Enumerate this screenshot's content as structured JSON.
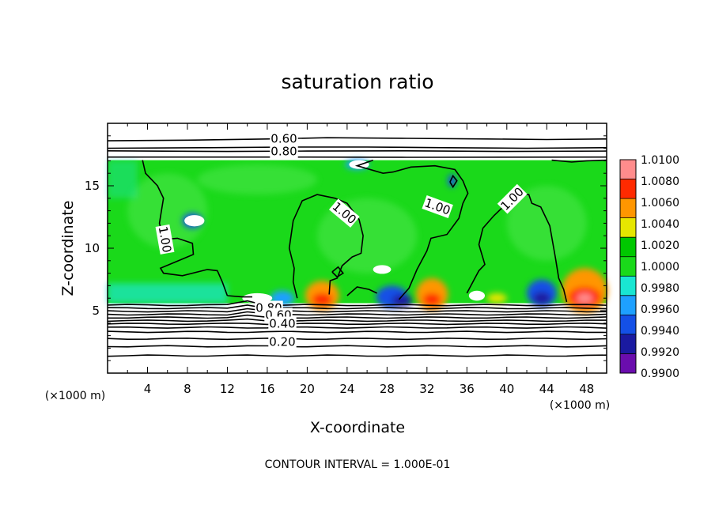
{
  "chart_data": {
    "type": "heatmap",
    "title": "saturation ratio",
    "xlabel": "X-coordinate",
    "ylabel": "Z-coordinate",
    "x_unit": "(×1000 m)",
    "y_unit": "(×1000 m)",
    "xlim": [
      0,
      50
    ],
    "ylim": [
      0,
      20
    ],
    "x_ticks": [
      "4",
      "8",
      "12",
      "16",
      "20",
      "24",
      "28",
      "32",
      "36",
      "40",
      "44",
      "48"
    ],
    "y_ticks": [
      "5",
      "10",
      "15"
    ],
    "colorbar": {
      "levels": [
        0.99,
        0.992,
        0.994,
        0.996,
        0.998,
        1.0,
        1.002,
        1.004,
        1.006,
        1.008,
        1.01
      ],
      "labels": [
        "0.9900",
        "0.9920",
        "0.9940",
        "0.9960",
        "0.9980",
        "1.0000",
        "1.0020",
        "1.0040",
        "1.0060",
        "1.0080",
        "1.0100"
      ],
      "colors": [
        "#6a0dad",
        "#1a1aa0",
        "#1450e6",
        "#1ea0ff",
        "#19e6d2",
        "#1ad91a",
        "#00c800",
        "#e6e600",
        "#ff9600",
        "#ff2a00",
        "#ff8c8c"
      ]
    },
    "contour_labels": [
      "0.60",
      "0.80",
      "1.00",
      "1.00",
      "1.00",
      "1.00",
      "0.80",
      "0.60",
      "0.40",
      "0.20"
    ],
    "contour_interval_text": "CONTOUR INTERVAL = 1.000E-01",
    "grid": false
  }
}
